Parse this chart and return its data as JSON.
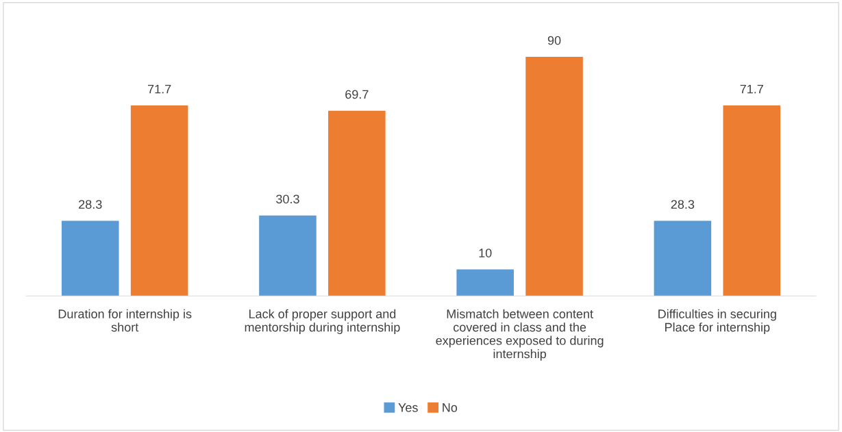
{
  "chart_data": {
    "type": "bar",
    "categories": [
      "Duration for internship is short",
      "Lack of proper support and mentorship during internship",
      "Mismatch between content covered in class and the experiences exposed to during internship",
      "Difficulties in securing Place for internship"
    ],
    "series": [
      {
        "name": "Yes",
        "color": "#5b9bd5",
        "values": [
          28.3,
          30.3,
          10,
          28.3
        ]
      },
      {
        "name": "No",
        "color": "#ed7d31",
        "values": [
          71.7,
          69.7,
          90,
          71.7
        ]
      }
    ],
    "data_labels": true,
    "legend": "bottom",
    "grid": false
  }
}
